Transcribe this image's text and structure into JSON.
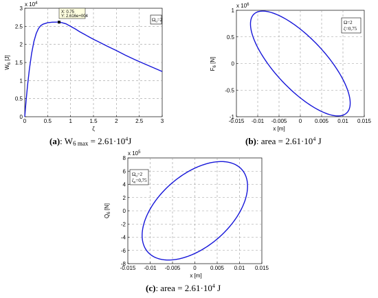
{
  "captions": {
    "a_label": "(a)",
    "a_text": ": W",
    "a_sub": "6 max",
    "a_val": " = 2.61·10",
    "a_exp": "4",
    "a_unit": "J",
    "b_label": "(b)",
    "b_text": ": area = 2.61·10",
    "b_exp": "4",
    "b_unit": " J",
    "c_label": "(c)",
    "c_text": ": area = 2.61·10",
    "c_exp": "4",
    "c_unit": " J"
  },
  "chart_data": [
    {
      "id": "a",
      "type": "line",
      "ylabel": "W",
      "ylabel_sub": "6",
      "ylabel_unit": " [J]",
      "xlabel": "ζ",
      "exponent": "x 10",
      "exponent_power": "4",
      "xlim": [
        0,
        3
      ],
      "ylim": [
        0,
        3
      ],
      "xticks": [
        0,
        0.5,
        1,
        1.5,
        2,
        2.5,
        3
      ],
      "xticklabels": [
        "0",
        "0.5",
        "1",
        "1.5",
        "2",
        "2.5",
        "3"
      ],
      "yticks": [
        0,
        0.5,
        1,
        1.5,
        2,
        2.5,
        3
      ],
      "yticklabels": [
        "0",
        "0.5",
        "1",
        "1.5",
        "2",
        "2.5",
        "3"
      ],
      "grid": true,
      "legend": {
        "text": "Ω",
        "sub": "u",
        "rest": "=2"
      },
      "datatip": {
        "x_text": "X: 0.75",
        "y_text": "Y: 2.616e+004",
        "x": 0.75,
        "y": 2.616
      },
      "series": [
        {
          "x": [
            0,
            0.03,
            0.06,
            0.1,
            0.15,
            0.2,
            0.25,
            0.3,
            0.35,
            0.4,
            0.5,
            0.6,
            0.7,
            0.75,
            0.8,
            0.9,
            1.0,
            1.1,
            1.2,
            1.3,
            1.4,
            1.5,
            1.6,
            1.8,
            2.0,
            2.2,
            2.4,
            2.6,
            2.8,
            3.0
          ],
          "y": [
            0,
            0.45,
            0.85,
            1.3,
            1.75,
            2.08,
            2.3,
            2.44,
            2.52,
            2.56,
            2.6,
            2.615,
            2.616,
            2.616,
            2.605,
            2.57,
            2.5,
            2.43,
            2.35,
            2.28,
            2.21,
            2.14,
            2.08,
            1.95,
            1.83,
            1.7,
            1.58,
            1.47,
            1.36,
            1.25
          ]
        }
      ]
    },
    {
      "id": "b",
      "type": "line",
      "ylabel": "F",
      "ylabel_sub": "6",
      "ylabel_unit": " [N]",
      "xlabel": "x [m]",
      "exponent": "x 10",
      "exponent_power": "6",
      "xlim": [
        -0.015,
        0.015
      ],
      "ylim": [
        -1,
        1
      ],
      "xticks": [
        -0.015,
        -0.01,
        -0.005,
        0,
        0.005,
        0.01,
        0.015
      ],
      "xticklabels": [
        "-0.015",
        "-0.01",
        "-0.005",
        "0",
        "0.005",
        "0.01",
        "0.015"
      ],
      "yticks": [
        -1,
        -0.5,
        0,
        0.5,
        1
      ],
      "yticklabels": [
        "-1",
        "-0.5",
        "0",
        "0.5",
        "1"
      ],
      "grid": true,
      "legend": {
        "line1": "Ω=2",
        "line2": "ζ=0,75"
      },
      "ellipse": {
        "x_amp": 0.0117,
        "y_amp": 0.985,
        "phase_deg": 139
      }
    },
    {
      "id": "c",
      "type": "line",
      "ylabel": "Q",
      "ylabel_sub": "6",
      "ylabel_unit": " [N]",
      "xlabel": "x [m]",
      "exponent": "x 10",
      "exponent_power": "5",
      "xlim": [
        -0.015,
        0.015
      ],
      "ylim": [
        -8,
        8
      ],
      "xticks": [
        -0.015,
        -0.01,
        -0.005,
        0,
        0.005,
        0.01,
        0.015
      ],
      "xticklabels": [
        "-0.015",
        "-0.01",
        "-0.005",
        "0",
        "0.005",
        "0.01",
        "0.015"
      ],
      "yticks": [
        -8,
        -6,
        -4,
        -2,
        0,
        2,
        4,
        6,
        8
      ],
      "yticklabels": [
        "-8",
        "-6",
        "-4",
        "-2",
        "0",
        "2",
        "4",
        "6",
        "8"
      ],
      "grid": true,
      "legend": {
        "line1": "Ω",
        "line1_sub": "u",
        "line1_rest": "=2",
        "line2": "ζ",
        "line2_sub": "u",
        "line2_rest": "=0,75"
      },
      "ellipse": {
        "x_amp": 0.0118,
        "y_amp": 7.45,
        "phase_deg": 60
      }
    }
  ]
}
